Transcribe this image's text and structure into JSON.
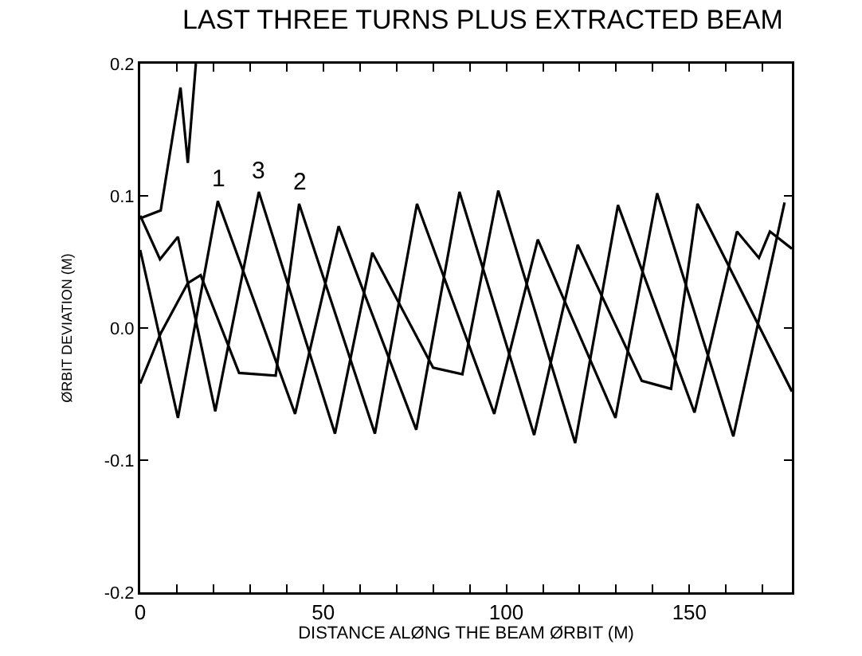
{
  "chart_data": {
    "type": "line",
    "title": "LAST THREE TURNS PLUS EXTRACTED BEAM",
    "xlabel": "DISTANCE ALØNG THE BEAM ØRBIT (M)",
    "ylabel": "ØRBIT DEVIATION (M)",
    "xlim": [
      0,
      178
    ],
    "xticks": [
      0,
      {
        "value": 10,
        "label": null
      },
      {
        "value": 20,
        "label": null
      },
      {
        "value": 30,
        "label": null
      },
      {
        "value": 40,
        "label": null
      },
      50,
      {
        "value": 60,
        "label": null
      },
      {
        "value": 70,
        "label": null
      },
      {
        "value": 80,
        "label": null
      },
      {
        "value": 90,
        "label": null
      },
      100,
      {
        "value": 110,
        "label": null
      },
      {
        "value": 120,
        "label": null
      },
      {
        "value": 130,
        "label": null
      },
      {
        "value": 140,
        "label": null
      },
      150,
      {
        "value": 160,
        "label": null
      },
      {
        "value": 170,
        "label": null
      }
    ],
    "ylim": [
      -0.2,
      0.2
    ],
    "yticks": [
      {
        "value": -0.2,
        "label": "-0.2"
      },
      {
        "value": -0.1,
        "label": "-0.1"
      },
      {
        "value": 0,
        "label": "0.0"
      },
      {
        "value": 0.1,
        "label": "0.1"
      },
      {
        "value": 0.2,
        "label": "0.2"
      }
    ],
    "grid": false,
    "legend": false,
    "marker": "none",
    "line_style": "solid",
    "series": [
      {
        "name": "1",
        "color": "#000000",
        "x": [
          0,
          10.3,
          21.2,
          42.3,
          54.2,
          75.4,
          87.2,
          107.6,
          119.5,
          137,
          145,
          152.2,
          178
        ],
        "values": [
          0.059,
          -0.068,
          0.096,
          -0.065,
          0.077,
          -0.077,
          0.103,
          -0.081,
          0.063,
          -0.04,
          -0.046,
          0.094,
          -0.048
        ]
      },
      {
        "name": "3",
        "color": "#000000",
        "x": [
          0,
          5.4,
          10.3,
          20.5,
          32.4,
          53.2,
          63.4,
          80,
          88,
          97.8,
          118.8,
          130.5,
          151.4,
          163,
          169,
          172,
          178
        ],
        "values": [
          0.085,
          0.052,
          0.069,
          -0.063,
          0.103,
          -0.08,
          0.057,
          -0.03,
          -0.035,
          0.104,
          -0.087,
          0.093,
          -0.064,
          0.073,
          0.053,
          0.073,
          0.06
        ]
      },
      {
        "name": "2",
        "color": "#000000",
        "x": [
          0,
          5.6,
          13,
          16.5,
          27,
          37,
          43.4,
          64.1,
          75.6,
          96.7,
          108.6,
          129.8,
          141.2,
          162,
          176
        ],
        "values": [
          -0.042,
          -0.004,
          0.034,
          0.04,
          -0.034,
          -0.036,
          0.094,
          -0.08,
          0.094,
          -0.065,
          0.067,
          -0.068,
          0.102,
          -0.082,
          0.095
        ]
      },
      {
        "color": "#000000",
        "x": [
          0,
          5.6,
          11,
          13,
          15.2
        ],
        "values": [
          0.083,
          0.089,
          0.182,
          0.125,
          0.2
        ]
      }
    ]
  }
}
